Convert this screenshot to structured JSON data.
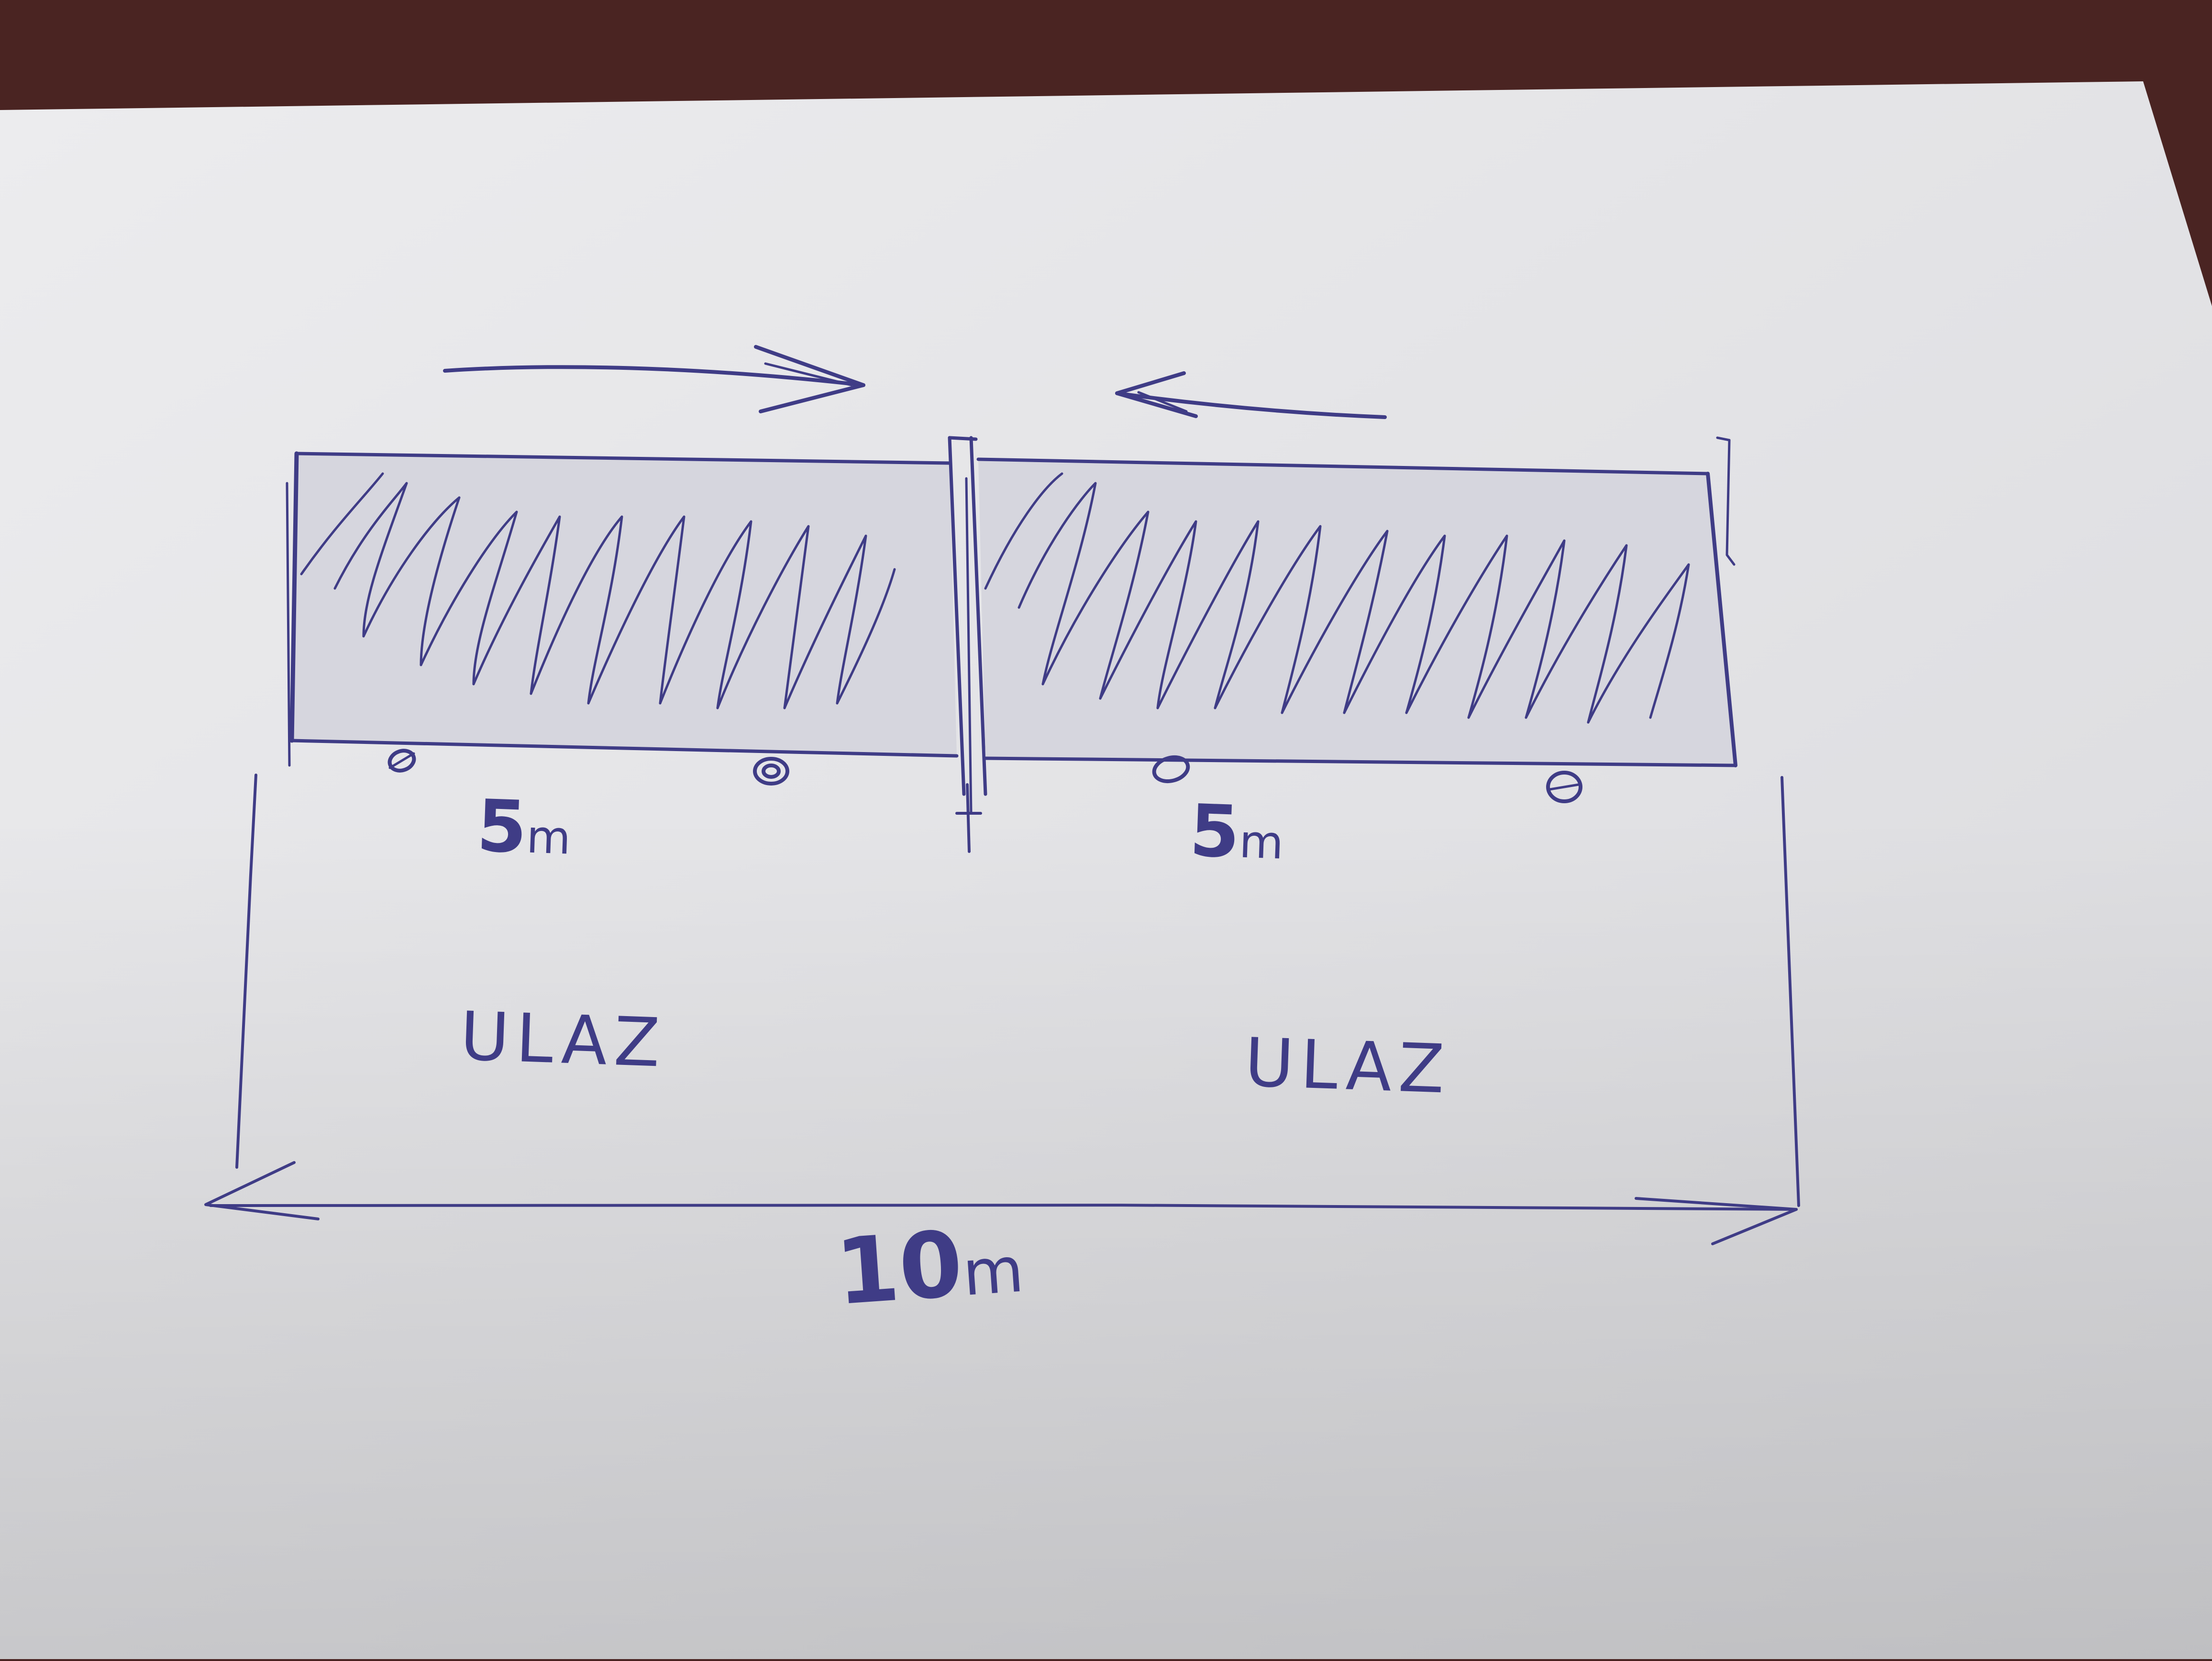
{
  "sketch": {
    "left_gate": {
      "length_number": "5",
      "length_unit": "m",
      "entry_label": "ULAZ",
      "slide_direction": "right"
    },
    "right_gate": {
      "length_number": "5",
      "length_unit": "m",
      "entry_label": "ULAZ",
      "slide_direction": "left"
    },
    "total": {
      "length_number": "10",
      "length_unit": "m"
    }
  },
  "colors": {
    "ink": "#3f3c86",
    "paper": "#e4e4e6",
    "desk": "#4a2422",
    "gate_fill": "#d6d6de"
  }
}
